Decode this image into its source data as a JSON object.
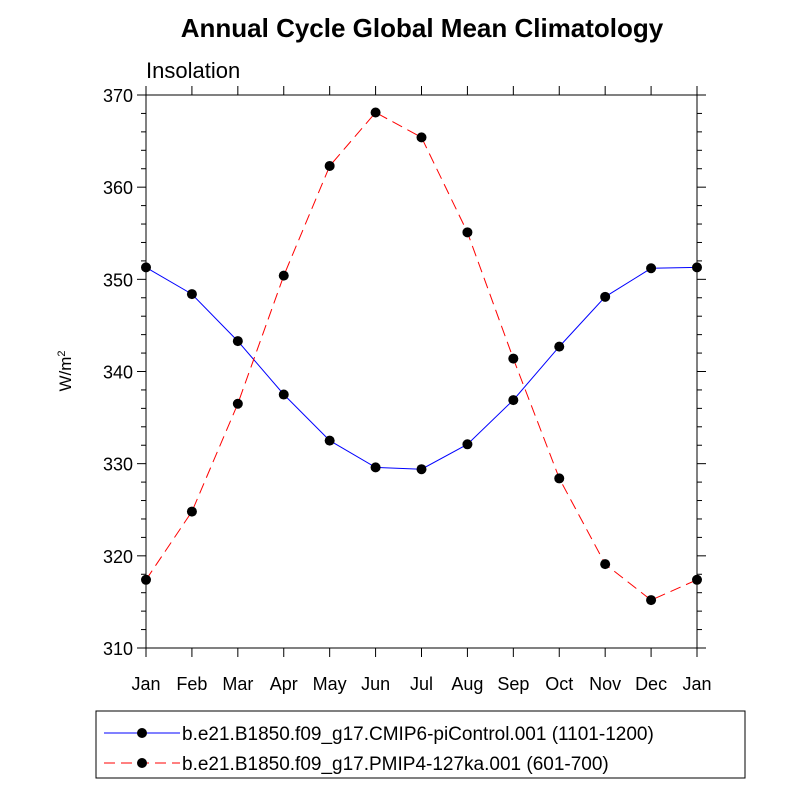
{
  "chart_data": {
    "type": "line",
    "title": "Annual Cycle Global Mean Climatology",
    "subtitle": "Insolation",
    "ylabel": "W/m",
    "ylabel_sup": "2",
    "xlabel": "",
    "categories": [
      "Jan",
      "Feb",
      "Mar",
      "Apr",
      "May",
      "Jun",
      "Jul",
      "Aug",
      "Sep",
      "Oct",
      "Nov",
      "Dec",
      "Jan"
    ],
    "ylim": [
      310,
      370
    ],
    "yticks": [
      310,
      320,
      330,
      340,
      350,
      360,
      370
    ],
    "grid": false,
    "legend_position": "bottom",
    "series": [
      {
        "name": "b.e21.B1850.f09_g17.CMIP6-piControl.001 (1101-1200)",
        "color": "#0000ff",
        "dash": "solid",
        "values": [
          351.3,
          348.4,
          343.3,
          337.5,
          332.5,
          329.6,
          329.4,
          332.1,
          336.9,
          342.7,
          348.1,
          351.2,
          351.3
        ]
      },
      {
        "name": "b.e21.B1850.f09_g17.PMIP4-127ka.001 (601-700)",
        "color": "#ff0000",
        "dash": "dashed",
        "values": [
          317.4,
          324.8,
          336.5,
          350.4,
          362.3,
          368.1,
          365.4,
          355.1,
          341.4,
          328.4,
          319.1,
          315.2,
          317.4
        ]
      }
    ]
  }
}
